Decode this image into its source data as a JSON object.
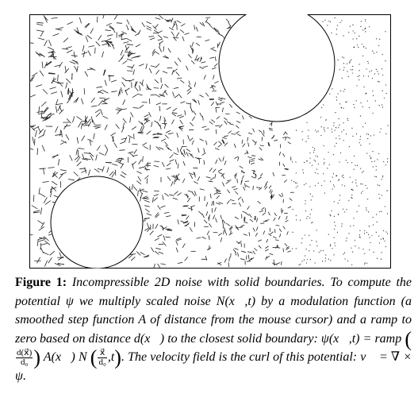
{
  "figure": {
    "obstacles": [
      {
        "name": "top-right-circle"
      },
      {
        "name": "bottom-left-circle"
      }
    ]
  },
  "caption": {
    "label": "Figure 1:",
    "text_1": " Incompressible 2D noise with solid boundaries. To compute the potential ψ we multiply scaled noise N(x⃗,t) by a modulation function (a smoothed step function A of distance from the mouse cursor) and a ramp to zero based on distance d(x⃗) to the closest solid boundary: ψ(x⃗,t) = ramp",
    "frac1_num": "d(x⃗)",
    "frac1_den": "d₀",
    "text_2": " A(x⃗) N",
    "frac2_num": "x⃗",
    "frac2_den": "d₀",
    "text_3": ",t",
    "text_4": ". The velocity field is the curl of this potential: v⃗ = ∇ × ψ."
  }
}
